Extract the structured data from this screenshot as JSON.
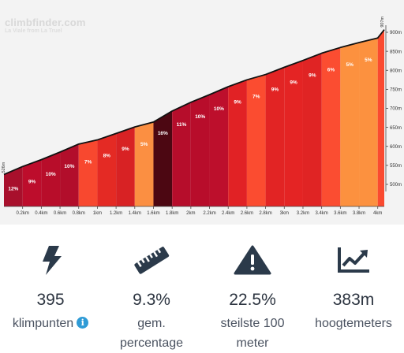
{
  "brand": {
    "name": "climbfinder.com",
    "route": "La Viale from La Truel"
  },
  "chart_data": {
    "type": "area",
    "title": "",
    "xlabel": "",
    "ylabel": "",
    "x_ticks": [
      "0.2km",
      "0.4km",
      "0.6km",
      "0.8km",
      "1km",
      "1.2km",
      "1.4km",
      "1.6km",
      "1.8km",
      "2km",
      "2.2km",
      "2.4km",
      "2.6km",
      "2.8km",
      "3km",
      "3.2km",
      "3.4km",
      "3.6km",
      "3.8km",
      "4km"
    ],
    "y_ticks": [
      "500m",
      "550m",
      "600m",
      "650m",
      "700m",
      "750m",
      "800m",
      "850m",
      "900m"
    ],
    "ylim": [
      485,
      915
    ],
    "start_elevation_label": "526m",
    "end_elevation_label": "907m",
    "segments": [
      {
        "from_km": 0.0,
        "to_km": 0.2,
        "grade_label": "12%",
        "color": "#a8102c",
        "end_elev": 547
      },
      {
        "from_km": 0.2,
        "to_km": 0.4,
        "grade_label": "9%",
        "color": "#bd0d2c",
        "end_elev": 565
      },
      {
        "from_km": 0.4,
        "to_km": 0.6,
        "grade_label": "10%",
        "color": "#b80d2a",
        "end_elev": 585
      },
      {
        "from_km": 0.6,
        "to_km": 0.8,
        "grade_label": "10%",
        "color": "#b20e2b",
        "end_elev": 606
      },
      {
        "from_km": 0.8,
        "to_km": 1.0,
        "grade_label": "7%",
        "color": "#f8482f",
        "end_elev": 617
      },
      {
        "from_km": 1.0,
        "to_km": 1.2,
        "grade_label": "8%",
        "color": "#e42a24",
        "end_elev": 634
      },
      {
        "from_km": 1.2,
        "to_km": 1.4,
        "grade_label": "9%",
        "color": "#d82224",
        "end_elev": 651
      },
      {
        "from_km": 1.4,
        "to_km": 1.6,
        "grade_label": "5%",
        "color": "#fb8f42",
        "end_elev": 664
      },
      {
        "from_km": 1.6,
        "to_km": 1.8,
        "grade_label": "16%",
        "color": "#4c0712",
        "end_elev": 693
      },
      {
        "from_km": 1.8,
        "to_km": 2.0,
        "grade_label": "11%",
        "color": "#b60d2b",
        "end_elev": 716
      },
      {
        "from_km": 2.0,
        "to_km": 2.2,
        "grade_label": "10%",
        "color": "#b80d2b",
        "end_elev": 736
      },
      {
        "from_km": 2.2,
        "to_km": 2.4,
        "grade_label": "10%",
        "color": "#bd0f2c",
        "end_elev": 757
      },
      {
        "from_km": 2.4,
        "to_km": 2.6,
        "grade_label": "9%",
        "color": "#e12225",
        "end_elev": 775
      },
      {
        "from_km": 2.6,
        "to_km": 2.8,
        "grade_label": "7%",
        "color": "#fb4c30",
        "end_elev": 789
      },
      {
        "from_km": 2.8,
        "to_km": 3.0,
        "grade_label": "9%",
        "color": "#e22424",
        "end_elev": 808
      },
      {
        "from_km": 3.0,
        "to_km": 3.2,
        "grade_label": "9%",
        "color": "#e42424",
        "end_elev": 826
      },
      {
        "from_km": 3.2,
        "to_km": 3.4,
        "grade_label": "9%",
        "color": "#e02424",
        "end_elev": 845
      },
      {
        "from_km": 3.4,
        "to_km": 3.6,
        "grade_label": "6%",
        "color": "#fb4d31",
        "end_elev": 860
      },
      {
        "from_km": 3.6,
        "to_km": 3.8,
        "grade_label": "5%",
        "color": "#fc913f",
        "end_elev": 873
      },
      {
        "from_km": 3.8,
        "to_km": 4.0,
        "grade_label": "5%",
        "color": "#fc913f",
        "end_elev": 885
      },
      {
        "from_km": 4.0,
        "to_km": 4.07,
        "grade_label": "",
        "color": "#fa4a30",
        "end_elev": 907
      }
    ]
  },
  "stats": [
    {
      "value": "395",
      "label": "klimpunten",
      "icon": "lightning-bolt-icon",
      "info": "i"
    },
    {
      "value": "9.3%",
      "label": "gem. percentage",
      "icon": "ruler-icon"
    },
    {
      "value": "22.5%",
      "label": "steilste 100 meter",
      "icon": "warning-triangle-icon"
    },
    {
      "value": "383m",
      "label": "hoogtemeters",
      "icon": "trend-chart-icon"
    }
  ],
  "colors": {
    "icon": "#2b3a4a",
    "text": "#2c3440",
    "label": "#4a5260",
    "info": "#2f9bd6",
    "chart_bg": "#f3f3f3"
  }
}
